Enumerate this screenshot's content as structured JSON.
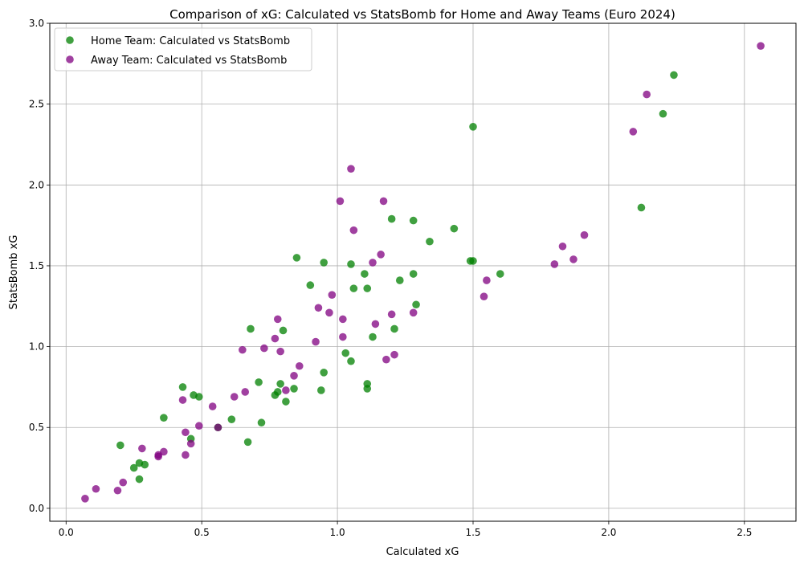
{
  "chart_data": {
    "type": "scatter",
    "title": "Comparison of xG: Calculated vs StatsBomb for Home and Away Teams (Euro 2024)",
    "xlabel": "Calculated xG",
    "ylabel": "StatsBomb xG",
    "xlim": [
      -0.06,
      2.69
    ],
    "ylim": [
      -0.08,
      3.0
    ],
    "xticks": [
      0.0,
      0.5,
      1.0,
      1.5,
      2.0,
      2.5
    ],
    "xtick_labels": [
      "0.0",
      "0.5",
      "1.0",
      "1.5",
      "2.0",
      "2.5"
    ],
    "yticks": [
      0.0,
      0.5,
      1.0,
      1.5,
      2.0,
      2.5,
      3.0
    ],
    "ytick_labels": [
      "0.0",
      "0.5",
      "1.0",
      "1.5",
      "2.0",
      "2.5",
      "3.0"
    ],
    "grid": true,
    "legend_position": "top-left",
    "series": [
      {
        "name": "Home Team: Calculated vs StatsBomb",
        "color": "#008000",
        "points": [
          [
            0.2,
            0.39
          ],
          [
            0.25,
            0.25
          ],
          [
            0.27,
            0.28
          ],
          [
            0.27,
            0.18
          ],
          [
            0.29,
            0.27
          ],
          [
            0.36,
            0.56
          ],
          [
            0.43,
            0.75
          ],
          [
            0.46,
            0.43
          ],
          [
            0.47,
            0.7
          ],
          [
            0.49,
            0.69
          ],
          [
            0.56,
            0.5
          ],
          [
            0.61,
            0.55
          ],
          [
            0.67,
            0.41
          ],
          [
            0.68,
            1.11
          ],
          [
            0.71,
            0.78
          ],
          [
            0.72,
            0.53
          ],
          [
            0.77,
            0.7
          ],
          [
            0.78,
            0.72
          ],
          [
            0.79,
            0.77
          ],
          [
            0.8,
            1.1
          ],
          [
            0.81,
            0.66
          ],
          [
            0.84,
            0.74
          ],
          [
            0.85,
            1.55
          ],
          [
            0.9,
            1.38
          ],
          [
            0.94,
            0.73
          ],
          [
            0.95,
            1.52
          ],
          [
            0.95,
            0.84
          ],
          [
            1.03,
            0.96
          ],
          [
            1.05,
            0.91
          ],
          [
            1.05,
            1.51
          ],
          [
            1.06,
            1.36
          ],
          [
            1.1,
            1.45
          ],
          [
            1.11,
            1.36
          ],
          [
            1.11,
            0.74
          ],
          [
            1.11,
            0.77
          ],
          [
            1.13,
            1.06
          ],
          [
            1.2,
            1.79
          ],
          [
            1.21,
            1.11
          ],
          [
            1.23,
            1.41
          ],
          [
            1.28,
            1.78
          ],
          [
            1.28,
            1.45
          ],
          [
            1.29,
            1.26
          ],
          [
            1.34,
            1.65
          ],
          [
            1.43,
            1.73
          ],
          [
            1.49,
            1.53
          ],
          [
            1.5,
            1.53
          ],
          [
            1.5,
            2.36
          ],
          [
            1.6,
            1.45
          ],
          [
            2.12,
            1.86
          ],
          [
            2.2,
            2.44
          ],
          [
            2.24,
            2.68
          ]
        ]
      },
      {
        "name": "Away Team: Calculated vs StatsBomb",
        "color": "#800080",
        "points": [
          [
            0.07,
            0.06
          ],
          [
            0.11,
            0.12
          ],
          [
            0.19,
            0.11
          ],
          [
            0.21,
            0.16
          ],
          [
            0.28,
            0.37
          ],
          [
            0.34,
            0.32
          ],
          [
            0.34,
            0.33
          ],
          [
            0.36,
            0.35
          ],
          [
            0.43,
            0.67
          ],
          [
            0.44,
            0.33
          ],
          [
            0.44,
            0.47
          ],
          [
            0.46,
            0.4
          ],
          [
            0.49,
            0.51
          ],
          [
            0.54,
            0.63
          ],
          [
            0.56,
            0.5
          ],
          [
            0.62,
            0.69
          ],
          [
            0.65,
            0.98
          ],
          [
            0.66,
            0.72
          ],
          [
            0.73,
            0.99
          ],
          [
            0.77,
            1.05
          ],
          [
            0.78,
            1.17
          ],
          [
            0.79,
            0.97
          ],
          [
            0.81,
            0.73
          ],
          [
            0.84,
            0.82
          ],
          [
            0.86,
            0.88
          ],
          [
            0.93,
            1.24
          ],
          [
            0.92,
            1.03
          ],
          [
            0.97,
            1.21
          ],
          [
            0.98,
            1.32
          ],
          [
            1.01,
            1.9
          ],
          [
            1.02,
            1.17
          ],
          [
            1.02,
            1.06
          ],
          [
            1.05,
            2.1
          ],
          [
            1.06,
            1.72
          ],
          [
            1.13,
            1.52
          ],
          [
            1.14,
            1.14
          ],
          [
            1.16,
            1.57
          ],
          [
            1.17,
            1.9
          ],
          [
            1.18,
            0.92
          ],
          [
            1.2,
            1.2
          ],
          [
            1.21,
            0.95
          ],
          [
            1.28,
            1.21
          ],
          [
            1.54,
            1.31
          ],
          [
            1.55,
            1.41
          ],
          [
            1.8,
            1.51
          ],
          [
            1.83,
            1.62
          ],
          [
            1.87,
            1.54
          ],
          [
            1.91,
            1.69
          ],
          [
            2.09,
            2.33
          ],
          [
            2.14,
            2.56
          ],
          [
            2.56,
            2.86
          ]
        ]
      }
    ]
  }
}
